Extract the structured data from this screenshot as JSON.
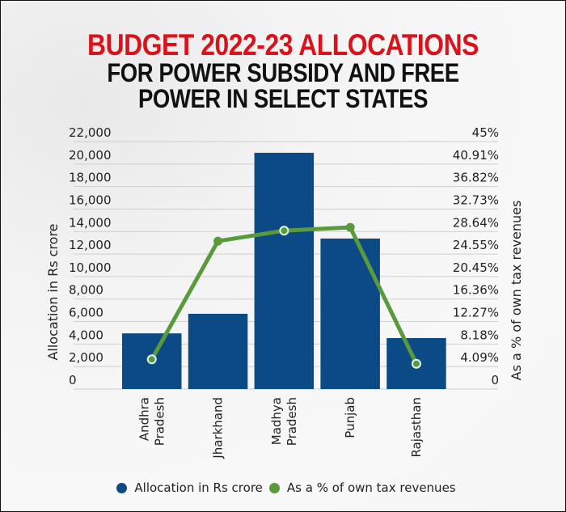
{
  "title": {
    "line1": "BUDGET 2022-23 ALLOCATIONS",
    "line2": "FOR POWER SUBSIDY AND FREE",
    "line3": "POWER IN SELECT STATES"
  },
  "colors": {
    "title_red": "#d9121b",
    "bar": "#0b4a85",
    "line": "#5a9a3c",
    "marker_ring": "#dff4f4"
  },
  "axes": {
    "left_label": "Allocation in Rs crore",
    "right_label": "As a % of own tax revenues",
    "left_ticks": [
      "0",
      "2,000",
      "4,000",
      "6,000",
      "8,000",
      "10,000",
      "12,000",
      "14,000",
      "16,000",
      "18,000",
      "20,000",
      "22,000"
    ],
    "right_ticks": [
      "0",
      "4.09%",
      "8.18%",
      "12.27%",
      "16.36%",
      "20.45%",
      "24.55%",
      "28.64%",
      "32.73%",
      "36.82%",
      "40.91%",
      "45%"
    ]
  },
  "legend": {
    "bar_label": "Allocation in Rs crore",
    "line_label": "As a % of own tax revenues"
  },
  "chart_data": {
    "type": "bar",
    "title": "BUDGET 2022-23 ALLOCATIONS FOR POWER SUBSIDY AND FREE POWER IN SELECT STATES",
    "categories": [
      "Andhra Pradesh",
      "Jharkhand",
      "Madhya Pradesh",
      "Punjab",
      "Rajasthan"
    ],
    "category_lines": [
      [
        "Andhra",
        "Pradesh"
      ],
      [
        "Jharkhand"
      ],
      [
        "Madhya",
        "Pradesh"
      ],
      [
        "Punjab"
      ],
      [
        "Rajasthan"
      ]
    ],
    "series": [
      {
        "name": "Allocation in Rs crore",
        "type": "bar",
        "axis": "left",
        "values": [
          4950,
          6690,
          21000,
          13380,
          4530
        ]
      },
      {
        "name": "As a % of own tax revenues",
        "type": "line",
        "axis": "right",
        "values": [
          5.4,
          26.9,
          28.8,
          29.4,
          4.6
        ]
      }
    ],
    "xlabel": "",
    "ylabel": "Allocation in Rs crore",
    "y2label": "As a % of own tax revenues",
    "ylim": [
      0,
      22000
    ],
    "y2lim": [
      0,
      45
    ],
    "grid": true,
    "legend_position": "bottom"
  }
}
